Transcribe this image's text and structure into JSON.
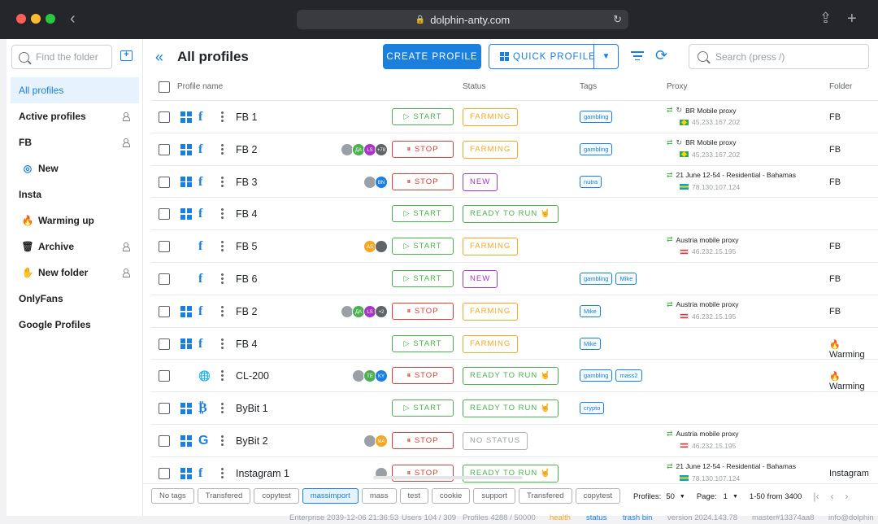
{
  "browser": {
    "url": "dolphin-anty.com"
  },
  "sidebar": {
    "search_placeholder": "Find the folder",
    "items": [
      {
        "label": "All profiles",
        "active": true,
        "icon": "",
        "shared": false
      },
      {
        "label": "Active profiles",
        "icon": "",
        "shared": true
      },
      {
        "label": "FB",
        "icon": "",
        "shared": true
      },
      {
        "label": "New",
        "icon": "spiral-icon",
        "sub": true,
        "shared": false
      },
      {
        "label": "Insta",
        "icon": "",
        "shared": false
      },
      {
        "label": "Warming up",
        "icon": "fire-icon",
        "sub": true,
        "shared": false
      },
      {
        "label": "Archive",
        "icon": "trash-icon",
        "sub": true,
        "shared": true
      },
      {
        "label": "New folder",
        "icon": "hand-icon",
        "sub": true,
        "shared": true
      },
      {
        "label": "OnlyFans",
        "icon": "",
        "shared": false
      },
      {
        "label": "Google Profiles",
        "icon": "",
        "shared": false
      }
    ]
  },
  "header": {
    "title": "All profiles",
    "create_label": "CREATE PROFILE",
    "quick_label": "QUICK PROFILE",
    "search_placeholder": "Search (press /)"
  },
  "table": {
    "columns": {
      "name": "Profile name",
      "status": "Status",
      "tags": "Tags",
      "proxy": "Proxy",
      "folder": "Folder"
    },
    "rows": [
      {
        "os": "windows",
        "site": "f",
        "name": "FB 1",
        "avatars": [],
        "action": "START",
        "status": "FARMING",
        "status_kind": "farming",
        "tags": [
          "gambling"
        ],
        "proxy_name": "BR Mobile proxy",
        "proxy_ip": "45.233.167.202",
        "flag": "br",
        "spin": true,
        "folder": "FB"
      },
      {
        "os": "windows",
        "site": "f",
        "name": "FB 2",
        "avatars": [
          {
            "t": "",
            "c": "#9aa0a6"
          },
          {
            "t": "ДА",
            "c": "#4caf50"
          },
          {
            "t": "LS",
            "c": "#a537c4"
          },
          {
            "t": "+78",
            "c": "#5f6368"
          }
        ],
        "action": "STOP",
        "status": "FARMING",
        "status_kind": "farming",
        "tags": [
          "gambling"
        ],
        "proxy_name": "BR Mobile proxy",
        "proxy_ip": "45.233.167.202",
        "flag": "br",
        "spin": true,
        "folder": "FB"
      },
      {
        "os": "windows",
        "site": "f",
        "name": "FB 3",
        "avatars": [
          {
            "t": "",
            "c": "#9aa0a6"
          },
          {
            "t": "BN",
            "c": "#1b7fe0"
          }
        ],
        "action": "STOP",
        "status": "NEW",
        "status_kind": "new",
        "tags": [
          "nutra"
        ],
        "proxy_name": "21 June 12-54 - Residential - Bahamas",
        "proxy_ip": "78.130.107.124",
        "flag": "bs",
        "spin": false,
        "folder": "FB"
      },
      {
        "os": "windows",
        "site": "f",
        "name": "FB 4",
        "avatars": [],
        "action": "START",
        "status": "READY TO RUN 🤘",
        "status_kind": "ready",
        "tags": [],
        "proxy_name": "",
        "proxy_ip": "",
        "flag": "",
        "spin": false,
        "folder": ""
      },
      {
        "os": "apple",
        "site": "f",
        "name": "FB 5",
        "avatars": [
          {
            "t": "AS",
            "c": "#f5a623"
          },
          {
            "t": "",
            "c": "#5f6368"
          }
        ],
        "action": "START",
        "status": "FARMING",
        "status_kind": "farming",
        "tags": [],
        "proxy_name": "Austria mobile proxy",
        "proxy_ip": "46.232.15.195",
        "flag": "at",
        "spin": false,
        "folder": "FB"
      },
      {
        "os": "apple",
        "site": "f",
        "name": "FB 6",
        "avatars": [],
        "action": "START",
        "status": "NEW",
        "status_kind": "new",
        "tags": [
          "gambling",
          "Mike"
        ],
        "proxy_name": "",
        "proxy_ip": "",
        "flag": "",
        "spin": false,
        "folder": "FB"
      },
      {
        "os": "windows",
        "site": "f",
        "name": "FB 2",
        "avatars": [
          {
            "t": "",
            "c": "#9aa0a6"
          },
          {
            "t": "ДА",
            "c": "#4caf50"
          },
          {
            "t": "LS",
            "c": "#a537c4"
          },
          {
            "t": "+2",
            "c": "#5f6368"
          }
        ],
        "action": "STOP",
        "status": "FARMING",
        "status_kind": "farming",
        "tags": [
          "Mike"
        ],
        "proxy_name": "Austria mobile proxy",
        "proxy_ip": "46.232.15.195",
        "flag": "at",
        "spin": false,
        "folder": "FB"
      },
      {
        "os": "windows",
        "site": "f",
        "name": "FB 4",
        "avatars": [],
        "action": "START",
        "status": "FARMING",
        "status_kind": "farming",
        "tags": [
          "Mike"
        ],
        "proxy_name": "",
        "proxy_ip": "",
        "flag": "",
        "spin": false,
        "folder": "🔥 Warming"
      },
      {
        "os": "apple",
        "site": "globe",
        "name": "CL-200",
        "avatars": [
          {
            "t": "",
            "c": "#9aa0a6"
          },
          {
            "t": "TE",
            "c": "#4caf50"
          },
          {
            "t": "KY",
            "c": "#1b7fe0"
          }
        ],
        "action": "STOP",
        "status": "READY TO RUN 🤘",
        "status_kind": "ready",
        "tags": [
          "gambling",
          "mass2"
        ],
        "proxy_name": "",
        "proxy_ip": "",
        "flag": "",
        "spin": false,
        "folder": "🔥 Warming"
      },
      {
        "os": "windows",
        "site": "btc",
        "name": "ByBit 1",
        "avatars": [],
        "action": "START",
        "status": "READY TO RUN 🤘",
        "status_kind": "ready",
        "tags": [
          "crypto"
        ],
        "proxy_name": "",
        "proxy_ip": "",
        "flag": "",
        "spin": false,
        "folder": ""
      },
      {
        "os": "windows",
        "site": "g",
        "name": "ByBit 2",
        "avatars": [
          {
            "t": "",
            "c": "#9aa0a6"
          },
          {
            "t": "MA",
            "c": "#f5a623"
          }
        ],
        "action": "STOP",
        "status": "NO STATUS",
        "status_kind": "nostatus",
        "tags": [],
        "proxy_name": "Austria mobile proxy",
        "proxy_ip": "46.232.15.195",
        "flag": "at",
        "spin": false,
        "folder": ""
      },
      {
        "os": "windows",
        "site": "f",
        "name": "Instagram 1",
        "avatars": [
          {
            "t": "",
            "c": "#9aa0a6"
          }
        ],
        "action": "STOP",
        "status": "READY TO RUN 🤘",
        "status_kind": "ready",
        "tags": [],
        "proxy_name": "21 June 12-54 - Residential - Bahamas",
        "proxy_ip": "78.130.107.124",
        "flag": "bs",
        "spin": false,
        "folder": "Instagram"
      }
    ]
  },
  "bottom": {
    "chips": [
      "No tags",
      "Transfered",
      "copytest",
      "massimport",
      "mass",
      "test",
      "cookie",
      "support",
      "Transfered",
      "copytest"
    ],
    "selected_chip": 3,
    "profiles_label": "Profiles:",
    "profiles_per_page": "50",
    "page_label": "Page:",
    "page": "1",
    "range": "1-50 from 3400"
  },
  "footer": {
    "edition": "Enterprise 2039-12-06 21:36:53",
    "users": "Users 104 / 309",
    "profiles": "Profiles 4288 / 50000",
    "health": "health",
    "status": "status",
    "trash": "trash bin",
    "version": "version 2024.143.78",
    "master": "master#13374aa8",
    "email": "info@dolphin"
  }
}
